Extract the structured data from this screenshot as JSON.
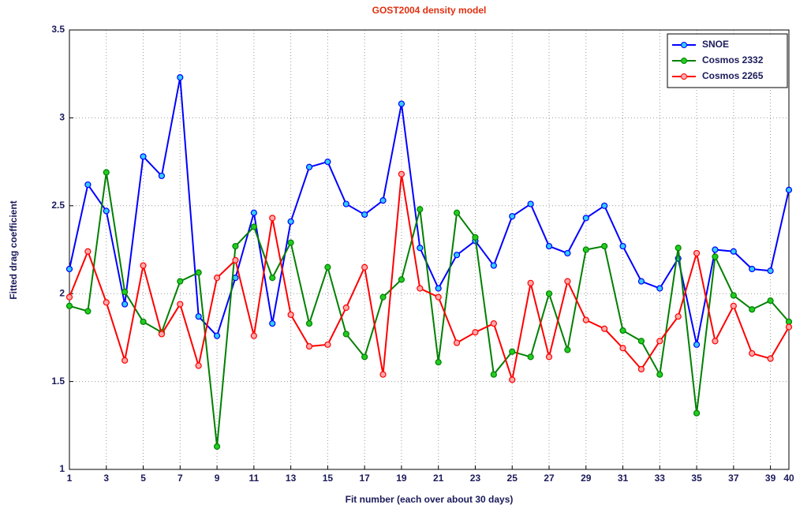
{
  "chart_data": {
    "type": "line",
    "title": "GOST2004 density model",
    "x_label": "Fit number (each over about 30 days)",
    "y_label": "Fitted drag coefficient",
    "x": [
      1,
      2,
      3,
      4,
      5,
      6,
      7,
      8,
      9,
      10,
      11,
      12,
      13,
      14,
      15,
      16,
      17,
      18,
      19,
      20,
      21,
      22,
      23,
      24,
      25,
      26,
      27,
      28,
      29,
      30,
      31,
      32,
      33,
      34,
      35,
      36,
      37,
      38,
      39,
      40
    ],
    "series": [
      {
        "name": "SNOE",
        "color": "#0000ff",
        "marker_color": "#33ccff",
        "values": [
          2.14,
          2.62,
          2.47,
          1.94,
          2.78,
          2.67,
          3.23,
          1.87,
          1.76,
          2.09,
          2.46,
          1.83,
          2.41,
          2.72,
          2.75,
          2.51,
          2.45,
          2.53,
          3.08,
          2.26,
          2.03,
          2.22,
          2.3,
          2.16,
          2.44,
          2.51,
          2.27,
          2.23,
          2.43,
          2.5,
          2.27,
          2.07,
          2.03,
          2.2,
          1.71,
          2.25,
          2.24,
          2.14,
          2.13,
          2.59
        ]
      },
      {
        "name": "Cosmos 2332",
        "color": "#008000",
        "marker_color": "#22cc22",
        "values": [
          1.93,
          1.9,
          2.69,
          2.01,
          1.84,
          1.78,
          2.07,
          2.12,
          1.13,
          2.27,
          2.38,
          2.09,
          2.29,
          1.83,
          2.15,
          1.77,
          1.64,
          1.98,
          2.08,
          2.48,
          1.61,
          2.46,
          2.32,
          1.54,
          1.67,
          1.64,
          2.0,
          1.68,
          2.25,
          2.27,
          1.79,
          1.73,
          1.54,
          2.26,
          1.32,
          2.21,
          1.99,
          1.91,
          1.96,
          1.84
        ]
      },
      {
        "name": "Cosmos 2265",
        "color": "#ff0000",
        "marker_color": "#ffaaaa",
        "values": [
          1.98,
          2.24,
          1.95,
          1.62,
          2.16,
          1.77,
          1.94,
          1.59,
          2.09,
          2.19,
          1.76,
          2.43,
          1.88,
          1.7,
          1.71,
          1.92,
          2.15,
          1.54,
          2.68,
          2.03,
          1.98,
          1.72,
          1.78,
          1.83,
          1.51,
          2.06,
          1.64,
          2.07,
          1.85,
          1.8,
          1.69,
          1.57,
          1.73,
          1.87,
          2.23,
          1.73,
          1.93,
          1.66,
          1.63,
          1.81
        ]
      }
    ],
    "xlim": [
      1,
      40
    ],
    "xticks": [
      1,
      3,
      5,
      7,
      9,
      11,
      13,
      15,
      17,
      19,
      21,
      23,
      25,
      27,
      29,
      31,
      33,
      35,
      37,
      39,
      40
    ],
    "ylim": [
      1,
      3.5
    ],
    "yticks": [
      1,
      1.5,
      2,
      2.5,
      3,
      3.5
    ],
    "grid": true,
    "legend": "top-right"
  }
}
